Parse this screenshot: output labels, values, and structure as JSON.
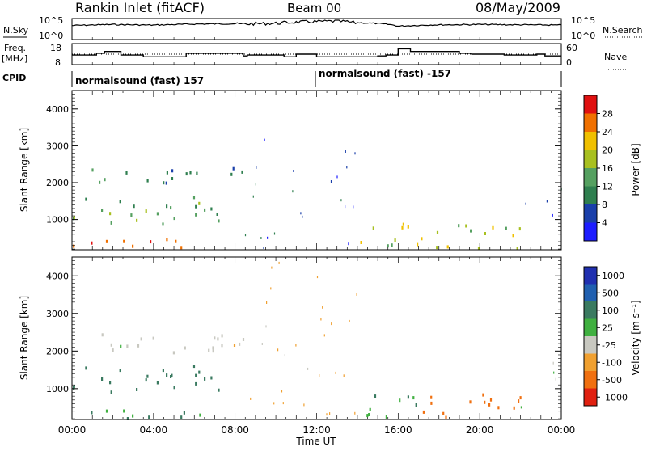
{
  "header": {
    "title": "Rankin Inlet (fitACF)",
    "beam": "Beam 00",
    "date": "08/May/2009"
  },
  "noise_panel": {
    "left_label": "N.Sky",
    "left_ticks": [
      "10^5",
      "10^0"
    ],
    "right_label": "N.Search",
    "right_ticks": [
      "10^5",
      "10^0"
    ]
  },
  "freq_panel": {
    "left_label_1": "Freq.",
    "left_label_2": "[MHz]",
    "left_ticks": [
      "18",
      "8"
    ],
    "right_label": "Nave",
    "right_ticks": [
      "60",
      "0"
    ]
  },
  "cpid_panel": {
    "label": "CPID",
    "segment_1": "normalsound (fast) 157",
    "segment_2": "normalsound (fast) -157"
  },
  "x_axis": {
    "label": "Time UT",
    "ticks": [
      "00:00",
      "04:00",
      "08:00",
      "12:00",
      "16:00",
      "20:00",
      "00:00"
    ]
  },
  "power_panel": {
    "ylabel": "Slant Range [km]",
    "yticks": [
      "1000",
      "2000",
      "3000",
      "4000"
    ],
    "colorbar_label": "Power [dB]",
    "colorbar_ticks": [
      "4",
      "8",
      "12",
      "16",
      "20",
      "24",
      "28"
    ],
    "colors": [
      "#1d1dff",
      "#1a3faa",
      "#2f7f4f",
      "#55a060",
      "#a8c020",
      "#f0c000",
      "#f07000",
      "#e01010"
    ]
  },
  "velocity_panel": {
    "ylabel": "Slant Range [km]",
    "yticks": [
      "1000",
      "2000",
      "3000",
      "4000"
    ],
    "colorbar_label": "Velocity [m s⁻¹]",
    "colorbar_ticks": [
      "1000",
      "500",
      "100",
      "25",
      "-25",
      "-100",
      "-500",
      "-1000"
    ],
    "colors": [
      "#2030b0",
      "#2060b0",
      "#3a7a60",
      "#40b040",
      "#c8c8c0",
      "#f0a030",
      "#f07010",
      "#e02010"
    ]
  },
  "chart_data": [
    {
      "type": "line",
      "title": "N.Sky / N.Search",
      "xlabel": "",
      "ylabel": "",
      "x_range_hours": [
        0,
        24
      ],
      "y_scale": "log",
      "ylim": [
        1,
        100000
      ],
      "series": [
        {
          "name": "N.Sky",
          "x": [
            0,
            2,
            4,
            6,
            8,
            10,
            11,
            12,
            13,
            14,
            16,
            18,
            20,
            22,
            24
          ],
          "values": [
            3000,
            6000,
            4000,
            8000,
            10000,
            20000,
            40000,
            60000,
            80000,
            20000,
            2000,
            5000,
            6000,
            5000,
            4000
          ]
        }
      ]
    },
    {
      "type": "line",
      "title": "Freq. / Nave",
      "x_range_hours": [
        0,
        24
      ],
      "ylim": [
        8,
        18
      ],
      "series": [
        {
          "name": "Freq.",
          "x": [
            0,
            1.2,
            1.6,
            2.4,
            3.5,
            5.6,
            8.4,
            8.6,
            10.4,
            11.0,
            12.0,
            15.0,
            15.4,
            16.0,
            16.6,
            19.0,
            19.6,
            21.2,
            22.8,
            23.2,
            24
          ],
          "values": [
            12.5,
            13.5,
            14.5,
            12.5,
            11.5,
            13.5,
            12,
            12.5,
            11.5,
            13,
            11.5,
            12,
            12.5,
            16,
            14.5,
            13.5,
            13,
            12.5,
            13,
            12,
            12
          ]
        }
      ]
    },
    {
      "type": "heatmap",
      "title": "Power",
      "xlabel": "Time UT",
      "ylabel": "Slant Range [km]",
      "x_range_hours": [
        0,
        24
      ],
      "ylim": [
        180,
        4500
      ],
      "colorbar": "Power [dB]",
      "clim": [
        0,
        30
      ],
      "regions": [
        {
          "t0": 0.0,
          "t1": 5.6,
          "r0": 1900,
          "r1": 2400,
          "value": 10
        },
        {
          "t0": 5.0,
          "t1": 8.4,
          "r0": 2100,
          "r1": 2500,
          "value": 8
        },
        {
          "t0": 0.0,
          "t1": 7.5,
          "r0": 800,
          "r1": 1600,
          "value": 14
        },
        {
          "t0": 0.0,
          "t1": 7.8,
          "r0": 200,
          "r1": 500,
          "value": 26
        },
        {
          "t0": 8.0,
          "t1": 12.0,
          "r0": 200,
          "r1": 3200,
          "value": 6
        },
        {
          "t0": 12.0,
          "t1": 14.0,
          "r0": 200,
          "r1": 4400,
          "value": 5
        },
        {
          "t0": 13.8,
          "t1": 22.0,
          "r0": 200,
          "r1": 900,
          "value": 18
        },
        {
          "t0": 22.0,
          "t1": 24.0,
          "r0": 300,
          "r1": 2200,
          "value": 6
        }
      ]
    },
    {
      "type": "heatmap",
      "title": "Velocity",
      "xlabel": "Time UT",
      "ylabel": "Slant Range [km]",
      "x_range_hours": [
        0,
        24
      ],
      "ylim": [
        180,
        4500
      ],
      "colorbar": "Velocity [m s-1]",
      "clim": [
        -1000,
        1000
      ],
      "regions": [
        {
          "t0": 0.0,
          "t1": 8.4,
          "r0": 1900,
          "r1": 2500,
          "value": 0
        },
        {
          "t0": 0.0,
          "t1": 7.5,
          "r0": 800,
          "r1": 1600,
          "value": 100
        },
        {
          "t0": 0.0,
          "t1": 7.8,
          "r0": 200,
          "r1": 500,
          "value": 60
        },
        {
          "t0": 8.0,
          "t1": 14.0,
          "r0": 200,
          "r1": 4400,
          "value": -50
        },
        {
          "t0": 13.8,
          "t1": 17.0,
          "r0": 200,
          "r1": 900,
          "value": 50
        },
        {
          "t0": 17.0,
          "t1": 22.0,
          "r0": 200,
          "r1": 900,
          "value": -300
        },
        {
          "t0": 22.0,
          "t1": 24.0,
          "r0": 300,
          "r1": 2200,
          "value": 0
        }
      ]
    }
  ]
}
